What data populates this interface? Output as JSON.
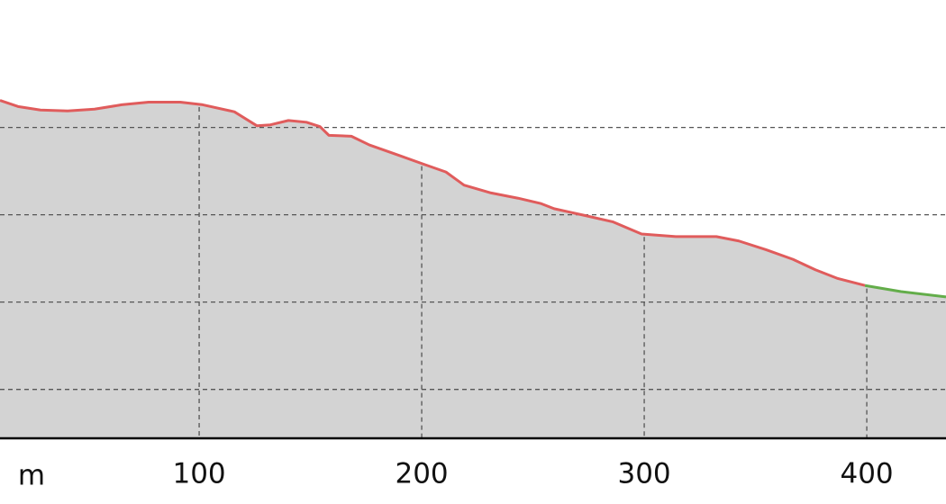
{
  "chart_data": {
    "type": "area",
    "xlabel": "m",
    "x": [
      10.5,
      18.6,
      28.7,
      40.9,
      53.0,
      65.2,
      77.3,
      91.5,
      101.6,
      115.8,
      125.9,
      132.0,
      140.1,
      148.2,
      154.3,
      158.3,
      168.4,
      176.5,
      188.7,
      200.8,
      210.9,
      219.0,
      231.2,
      243.3,
      253.4,
      259.5,
      273.7,
      285.8,
      298.8,
      314.2,
      332.4,
      342.5,
      354.7,
      366.8,
      376.9,
      387.0,
      399.2,
      415.4,
      435.6
    ],
    "series": [
      {
        "color": "#e05c5c",
        "values": [
          4.31,
          4.24,
          4.2,
          4.19,
          4.21,
          4.26,
          4.29,
          4.29,
          4.26,
          4.18,
          4.02,
          4.03,
          4.08,
          4.06,
          4.01,
          3.91,
          3.9,
          3.8,
          3.69,
          3.58,
          3.49,
          3.34,
          3.25,
          3.19,
          3.13,
          3.07,
          2.99,
          2.92,
          2.78,
          2.75,
          2.75,
          2.7,
          2.6,
          2.49,
          2.37,
          2.27,
          2.19,
          null,
          null
        ]
      },
      {
        "color": "#63ad4a",
        "values": [
          null,
          null,
          null,
          null,
          null,
          null,
          null,
          null,
          null,
          null,
          null,
          null,
          null,
          null,
          null,
          null,
          null,
          null,
          null,
          null,
          null,
          null,
          null,
          null,
          null,
          null,
          null,
          null,
          null,
          null,
          null,
          null,
          null,
          null,
          null,
          null,
          2.19,
          2.12,
          2.06
        ]
      }
    ],
    "fill": "#d3d3d3",
    "xlim": [
      10.5,
      435.6
    ],
    "ylim": [
      0.44,
      5.46
    ],
    "xticks": [
      100,
      200,
      300,
      400
    ],
    "yticks": [
      1,
      2,
      3,
      4
    ],
    "grid": true
  }
}
